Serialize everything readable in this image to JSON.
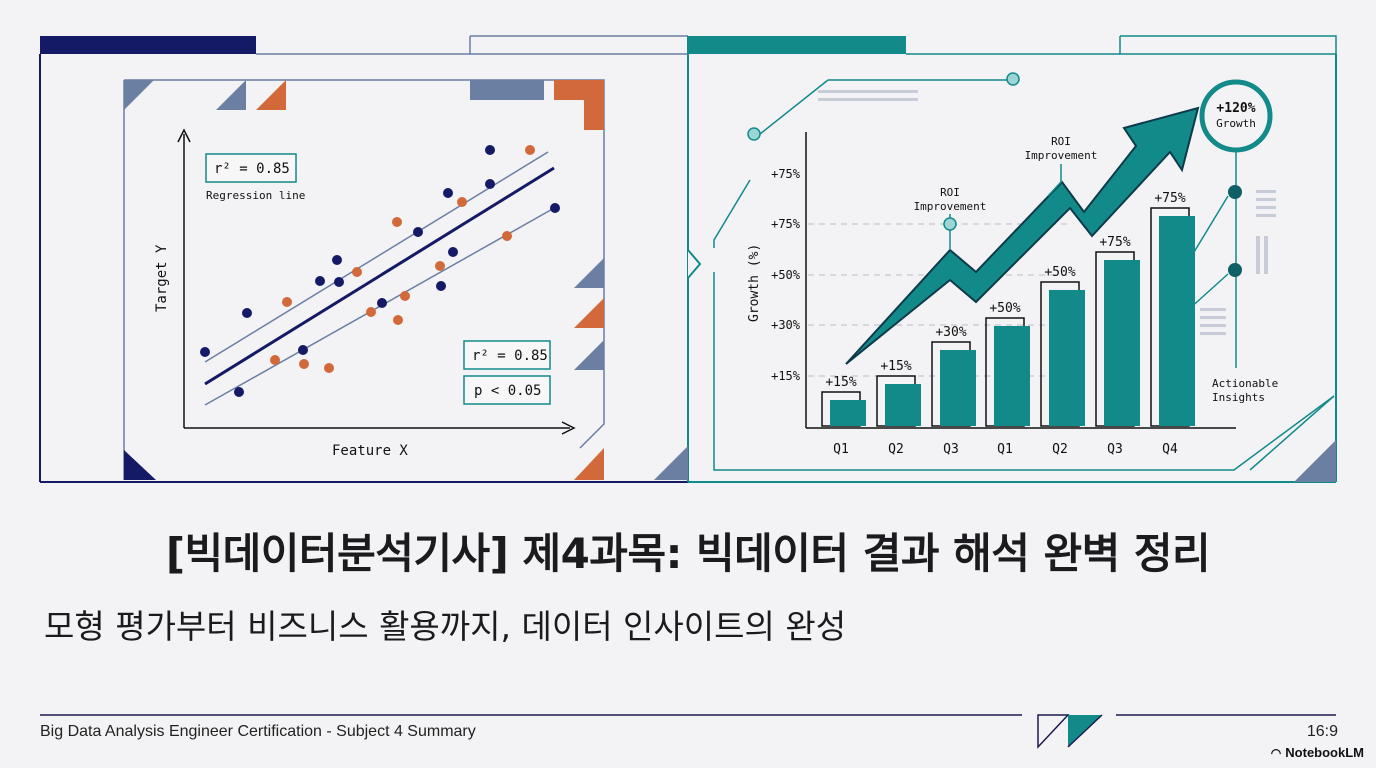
{
  "title": "[빅데이터분석기사] 제4과목: 빅데이터 결과 해석 완벽 정리",
  "subtitle": "모형 평가부터  비즈니스 활용까지, 데이터 인사이트의 완성",
  "footer": {
    "left": "Big Data Analysis Engineer Certification - Subject 4 Summary",
    "right": "16:9",
    "brand": "NotebookLM"
  },
  "colors": {
    "navy": "#141a66",
    "teal": "#138a8a",
    "orange": "#d2693a",
    "slate": "#6b7fa3"
  },
  "scatter": {
    "xlabel": "Feature X",
    "ylabel": "Target Y",
    "r2_top": "r² = 0.85",
    "regression_label": "Regression line",
    "r2_bottom": "r² = 0.85",
    "p_value": "p < 0.05"
  },
  "chart_data": {
    "type": "bar",
    "ylabel": "Growth (%)",
    "y_ticks": [
      "+15%",
      "+30%",
      "+50%",
      "+75%",
      "+75%"
    ],
    "categories": [
      "Q1",
      "Q2",
      "Q3",
      "Q1",
      "Q2",
      "Q3",
      "Q4"
    ],
    "values": [
      15,
      15,
      30,
      50,
      50,
      75,
      75
    ],
    "value_labels": [
      "+15%",
      "+15%",
      "+30%",
      "+50%",
      "+50%",
      "+75%",
      "+75%"
    ],
    "annotations": {
      "roi_1": "ROI Improvement",
      "roi_2": "ROI Improvement",
      "growth_value": "+120%",
      "growth_label": "Growth",
      "insights": "Actionable Insights"
    }
  }
}
